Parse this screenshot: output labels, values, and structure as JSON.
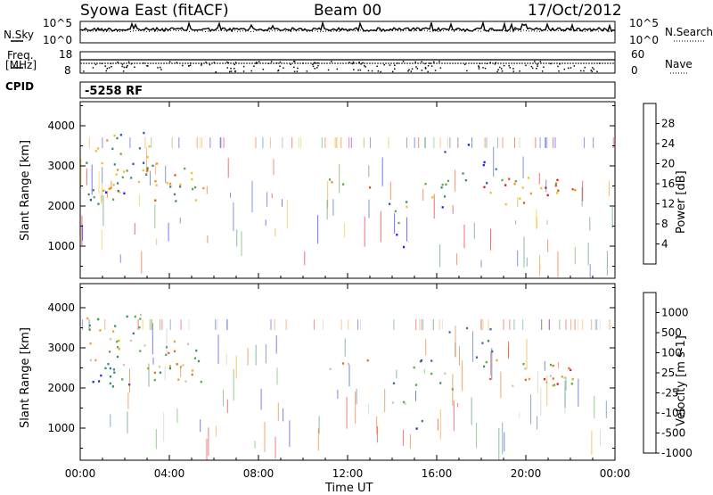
{
  "header": {
    "title": "Syowa East (fitACF)",
    "beam": "Beam 00",
    "date": "17/Oct/2012"
  },
  "panels": {
    "noise": {
      "left_label": "N.Sky",
      "right_label": "N.Search",
      "left_ticks": [
        "10^5",
        "10^0"
      ],
      "right_ticks": [
        "10^5",
        "10^0"
      ]
    },
    "freq": {
      "left_label_1": "Freq.",
      "left_label_2": "[MHz]",
      "right_label": "Nave",
      "left_ticks": [
        "18",
        "8"
      ],
      "right_ticks": [
        "60",
        "0"
      ]
    },
    "cpid": {
      "label": "CPID",
      "value": "-5258 RF"
    }
  },
  "chart_data": [
    {
      "type": "heatmap",
      "name": "power",
      "ylabel": "Slant Range [km]",
      "ylim": [
        200,
        4600
      ],
      "yticks": [
        "1000",
        "2000",
        "3000",
        "4000"
      ],
      "colorbar_label": "Power [dB]",
      "colorbar_ticks": [
        "4",
        "8",
        "12",
        "16",
        "20",
        "24",
        "28"
      ],
      "colors": [
        "#1a1aff",
        "#2a55b8",
        "#3a8c6e",
        "#5fa84a",
        "#f0c020",
        "#f29020",
        "#e85010",
        "#e81010"
      ]
    },
    {
      "type": "heatmap",
      "name": "velocity",
      "ylabel": "Slant Range [km]",
      "ylim": [
        200,
        4600
      ],
      "yticks": [
        "1000",
        "2000",
        "3000",
        "4000"
      ],
      "colorbar_label": "Velocity [m s-1]",
      "colorbar_ticks": [
        "1000",
        "500",
        "100",
        "25",
        "-25",
        "-100",
        "-500",
        "-1000"
      ],
      "colors": [
        "#2030d0",
        "#3a6ab0",
        "#3a8c6e",
        "#50b040",
        "#c8c8c0",
        "#f0a020",
        "#e07010",
        "#e82020"
      ]
    }
  ],
  "xaxis": {
    "label": "Time UT",
    "ticks": [
      "00:00",
      "04:00",
      "08:00",
      "12:00",
      "16:00",
      "20:00",
      "00:00"
    ]
  }
}
